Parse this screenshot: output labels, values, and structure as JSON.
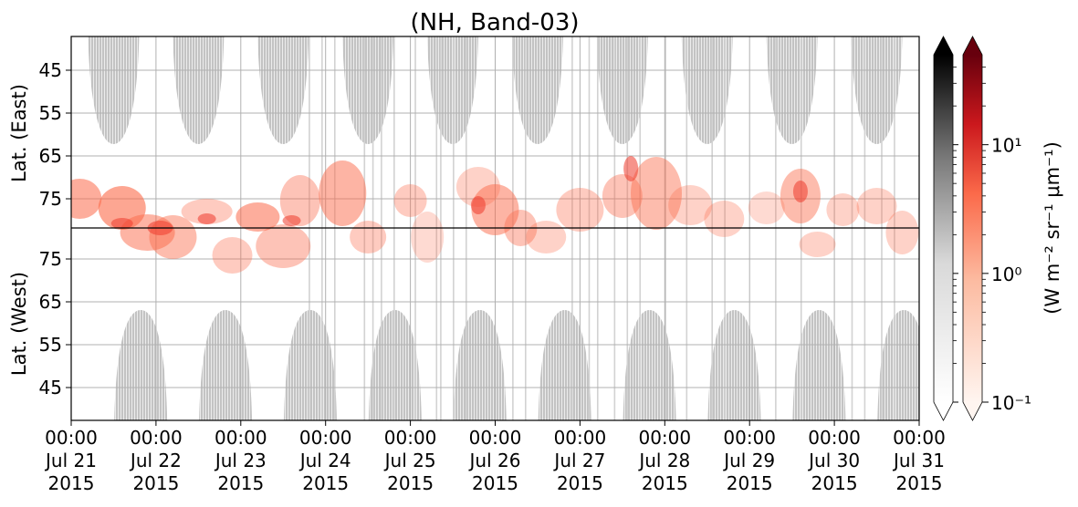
{
  "chart_data": {
    "type": "heatmap",
    "title": "(NH, Band-03)",
    "panels": [
      {
        "ylabel": "Lat. (East)",
        "yticks": [
          45,
          55,
          65,
          75
        ]
      },
      {
        "ylabel": "Lat. (West)",
        "yticks": [
          75,
          65,
          55,
          45
        ]
      }
    ],
    "x_ticks": [
      {
        "time": "00:00",
        "date": "Jul 21",
        "year": "2015"
      },
      {
        "time": "00:00",
        "date": "Jul 22",
        "year": "2015"
      },
      {
        "time": "00:00",
        "date": "Jul 23",
        "year": "2015"
      },
      {
        "time": "00:00",
        "date": "Jul 24",
        "year": "2015"
      },
      {
        "time": "00:00",
        "date": "Jul 25",
        "year": "2015"
      },
      {
        "time": "00:00",
        "date": "Jul 26",
        "year": "2015"
      },
      {
        "time": "00:00",
        "date": "Jul 27",
        "year": "2015"
      },
      {
        "time": "00:00",
        "date": "Jul 28",
        "year": "2015"
      },
      {
        "time": "00:00",
        "date": "Jul 29",
        "year": "2015"
      },
      {
        "time": "00:00",
        "date": "Jul 30",
        "year": "2015"
      },
      {
        "time": "00:00",
        "date": "Jul 31",
        "year": "2015"
      }
    ],
    "xlim": [
      "2015-07-21 00:00",
      "2015-07-31 00:00"
    ],
    "ylim": [
      38,
      83
    ],
    "colorbar": {
      "label": "(W m⁻² sr⁻¹ μm⁻¹)",
      "scale": "log",
      "range": [
        0.1,
        50
      ],
      "ticks": [
        "10⁻¹",
        "10⁰",
        "10¹"
      ],
      "cmaps": [
        "Greys",
        "Reds"
      ]
    },
    "sunlit_mask_color": "#c8c8c8",
    "emission_color": "#fb6a4a",
    "grid": true
  }
}
